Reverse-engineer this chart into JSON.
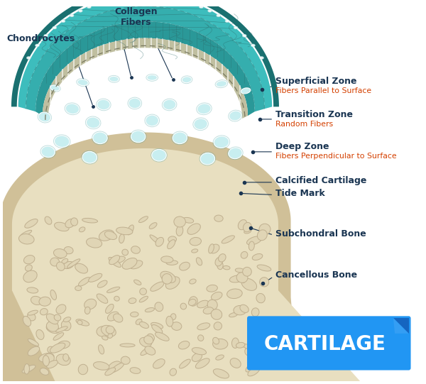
{
  "bg_color": "#ffffff",
  "title": "CARTILAGE",
  "title_color": "#ffffff",
  "label_color_dark": "#1a3552",
  "label_color_red": "#d44000",
  "labels": {
    "chondrocytes": "Chondrocytes",
    "collagen_fibers": "Collagen\nFibers",
    "superficial_zone": "Superficial Zone",
    "superficial_sub": "Fibers Parallel to Surface",
    "transition_zone": "Transition Zone",
    "transition_sub": "Random Fibers",
    "deep_zone": "Deep Zone",
    "deep_sub": "Fibers Perpendicular to Surface",
    "calcified_cartilage": "Calcified Cartilage",
    "tide_mark": "Tide Mark",
    "subchondral_bone": "Subchondral Bone",
    "cancellous_bone": "Cancellous Bone"
  },
  "colors": {
    "outer_border": "#1a7070",
    "outer_cartilage_bg": "#2ea8a8",
    "superficial_zone": "#3dbdbd",
    "transition_zone": "#35aeae",
    "deep_zone": "#2a9898",
    "calcified_strip": "#c0bfa0",
    "bone_beige": "#e8dfc0",
    "bone_tan": "#d8cda8",
    "bone_pore": "#c0b090",
    "bone_pore_fill": "#e0d5b5",
    "bone_outer_shell": "#d0c098",
    "bone_shaft_fill": "#ede0c0",
    "cell_fill": "#c8eef0",
    "cell_border": "#88cccc",
    "fiber_dark": "#2a6868",
    "dashed_sep": "#3a9090",
    "label_line": "#1a3552",
    "title_bg1": "#2196F3",
    "title_bg2": "#1565C0",
    "title_bg3": "#42a5f5"
  }
}
